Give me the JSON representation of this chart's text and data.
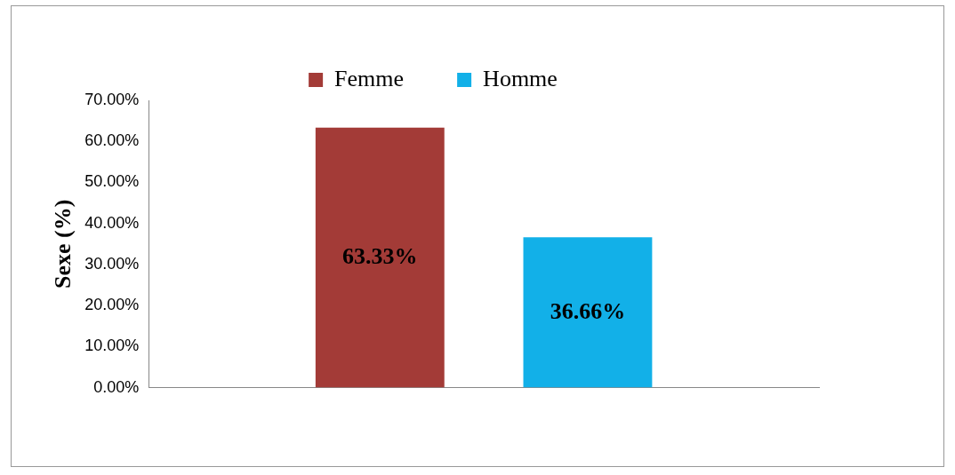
{
  "chart_data": {
    "type": "bar",
    "ylabel": "Sexe (%)",
    "categories": [
      null
    ],
    "series": [
      {
        "name": "Femme",
        "color": "#a33b37",
        "values": [
          63.33
        ],
        "value_labels": [
          "63.33%"
        ]
      },
      {
        "name": "Homme",
        "color": "#12b0e8",
        "values": [
          36.66
        ],
        "value_labels": [
          "36.66%"
        ]
      }
    ],
    "ylim": [
      0,
      70
    ],
    "yticks": [
      {
        "value": 0,
        "label": "0.00%"
      },
      {
        "value": 10,
        "label": "10.00%"
      },
      {
        "value": 20,
        "label": "20.00%"
      },
      {
        "value": 30,
        "label": "30.00%"
      },
      {
        "value": 40,
        "label": "40.00%"
      },
      {
        "value": 50,
        "label": "50.00%"
      },
      {
        "value": 60,
        "label": "60.00%"
      },
      {
        "value": 70,
        "label": "70.00%"
      }
    ],
    "legend": "top",
    "grid": false
  }
}
